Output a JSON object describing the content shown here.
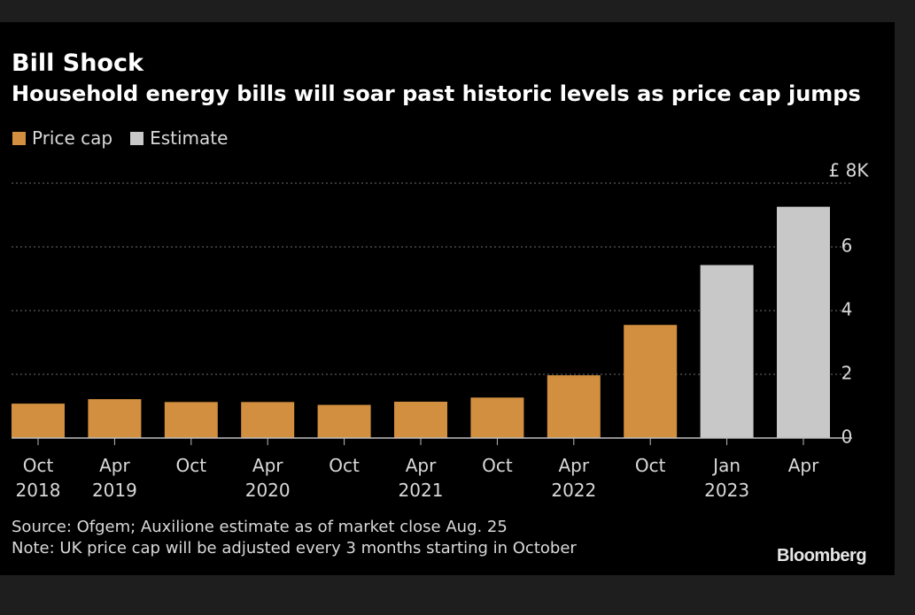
{
  "chart_data": {
    "type": "bar",
    "title": "Bill Shock",
    "subtitle": "Household energy bills will soar past historic levels as price cap jumps",
    "categories": [
      {
        "top": "Oct",
        "bottom": "2018"
      },
      {
        "top": "Apr",
        "bottom": "2019"
      },
      {
        "top": "Oct",
        "bottom": ""
      },
      {
        "top": "Apr",
        "bottom": "2020"
      },
      {
        "top": "Oct",
        "bottom": ""
      },
      {
        "top": "Apr",
        "bottom": "2021"
      },
      {
        "top": "Oct",
        "bottom": ""
      },
      {
        "top": "Apr",
        "bottom": "2022"
      },
      {
        "top": "Oct",
        "bottom": ""
      },
      {
        "top": "Jan",
        "bottom": "2023"
      },
      {
        "top": "Apr",
        "bottom": ""
      }
    ],
    "values": [
      1.08,
      1.22,
      1.13,
      1.13,
      1.04,
      1.14,
      1.27,
      1.97,
      3.55,
      5.43,
      7.26
    ],
    "series_of_bar": [
      "price_cap",
      "price_cap",
      "price_cap",
      "price_cap",
      "price_cap",
      "price_cap",
      "price_cap",
      "price_cap",
      "price_cap",
      "estimate",
      "estimate"
    ],
    "legend": [
      {
        "key": "price_cap",
        "label": "Price cap",
        "color": "#d18f3f"
      },
      {
        "key": "estimate",
        "label": "Estimate",
        "color": "#c8c8c8"
      }
    ],
    "yticks": [
      {
        "value": 0,
        "label": "0"
      },
      {
        "value": 2,
        "label": "2"
      },
      {
        "value": 4,
        "label": "4"
      },
      {
        "value": 6,
        "label": "6"
      },
      {
        "value": 8,
        "label": "£ 8K"
      }
    ],
    "ylim": [
      0,
      8
    ],
    "ylabel": "",
    "xlabel": "",
    "grid": true,
    "legend_position": "top-left"
  },
  "footer": {
    "source": "Source: Ofgem; Auxilione estimate as of market close Aug. 25",
    "note": "Note: UK price cap will be adjusted every 3 months starting in October",
    "brand": "Bloomberg"
  }
}
